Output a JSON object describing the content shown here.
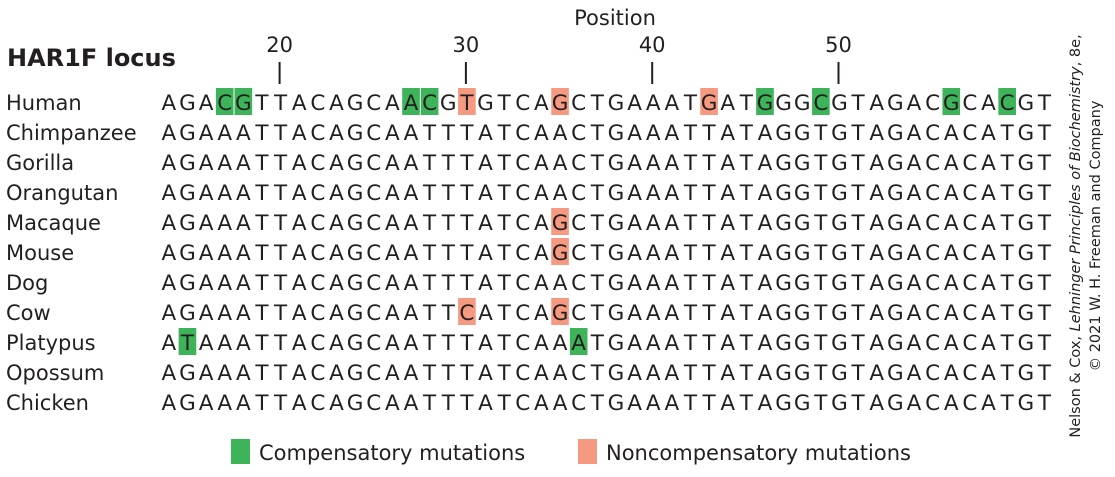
{
  "position_label": "Position",
  "locus_title": "HAR1F locus",
  "ticks": [
    "20",
    "30",
    "40",
    "50"
  ],
  "species": [
    {
      "name": "Human",
      "seq": "AGACGTTACAGCAACGTGTCAGCTGAAATGATGGGCGTAGACGCACGT"
    },
    {
      "name": "Chimpanzee",
      "seq": "AGAAATTACAGCAATTTATCAACTGAAATTATAGGTGTAGACACATGT"
    },
    {
      "name": "Gorilla",
      "seq": "AGAAATTACAGCAATTTATCAACTGAAATTATAGGTGTAGACACATGT"
    },
    {
      "name": "Orangutan",
      "seq": "AGAAATTACAGCAATTTATCAACTGAAATTATAGGTGTAGACACATGT"
    },
    {
      "name": "Macaque",
      "seq": "AGAAATTACAGCAATTTATCAGCTGAAATTATAGGTGTAGACACATGT"
    },
    {
      "name": "Mouse",
      "seq": "AGAAATTACAGCAATTTATCAGCTGAAATTATAGGTGTAGACACATGT"
    },
    {
      "name": "Dog",
      "seq": "AGAAATTACAGCAATTTATCAACTGAAATTATAGGTGTAGACACATGT"
    },
    {
      "name": "Cow",
      "seq": "AGAAATTACAGCAATTCATCAGCTGAAATTATAGGTGTAGACACATGT"
    },
    {
      "name": "Platypus",
      "seq": "ATAAATTACAGCAATTTATCAAATGAAATTATAGGTGTAGACACATGT"
    },
    {
      "name": "Opossum",
      "seq": "AGAAATTACAGCAATTTATCAACTGAAATTATAGGTGTAGACACATGT"
    },
    {
      "name": "Chicken",
      "seq": "AGAAATTACAGCAATTTATCAACTGAAATTATAGGTGTAGACACATGT"
    }
  ],
  "highlights": {
    "compensatory": [
      [
        0,
        3
      ],
      [
        0,
        4
      ],
      [
        0,
        13
      ],
      [
        0,
        14
      ],
      [
        0,
        32
      ],
      [
        0,
        35
      ],
      [
        0,
        42
      ],
      [
        0,
        45
      ],
      [
        8,
        1
      ],
      [
        8,
        22
      ]
    ],
    "noncompensatory": [
      [
        0,
        16
      ],
      [
        0,
        21
      ],
      [
        0,
        29
      ],
      [
        4,
        21
      ],
      [
        5,
        21
      ],
      [
        7,
        16
      ],
      [
        7,
        21
      ]
    ]
  },
  "legend": {
    "compensatory": "Compensatory mutations",
    "noncompensatory": "Noncompensatory mutations"
  },
  "colors": {
    "compensatory": "#3db35a",
    "noncompensatory": "#f59a80",
    "text": "#231f20"
  },
  "credit_line1_pre": "Nelson & Cox, ",
  "credit_line1_italic": "Lehninger Principles of Biochemistry",
  "credit_line1_post": ", 8e,",
  "credit_line2": "© 2021 W. H. Freeman and Company"
}
